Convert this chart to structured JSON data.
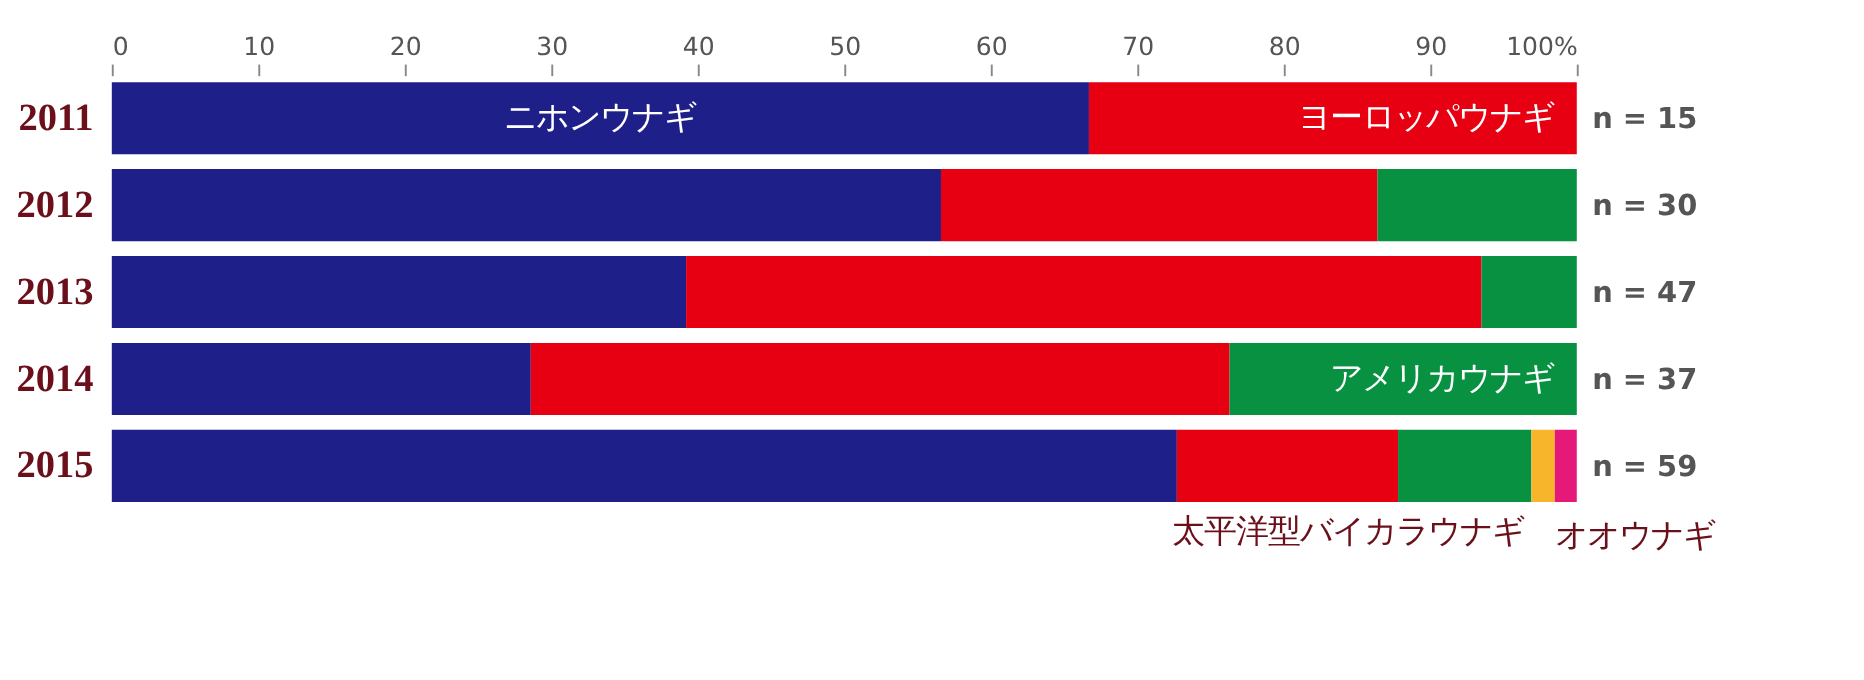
{
  "chart_data": {
    "type": "bar",
    "orientation": "horizontal",
    "stacked": true,
    "legend": false,
    "grid": false,
    "categories": [
      "2011",
      "2012",
      "2013",
      "2014",
      "2015"
    ],
    "xlim": [
      0,
      100
    ],
    "xticks": [
      0,
      10,
      20,
      30,
      40,
      50,
      60,
      70,
      80,
      90,
      {
        "value": 100,
        "label": "100%"
      }
    ],
    "series": [
      {
        "name": "ニホンウナギ",
        "color": "#1f1f8a",
        "values": [
          66.7,
          56.6,
          39.2,
          28.6,
          72.7
        ]
      },
      {
        "name": "ヨーロッパウナギ",
        "color": "#e60012",
        "values": [
          33.3,
          29.8,
          54.3,
          47.7,
          15.1
        ]
      },
      {
        "name": "アメリカウナギ",
        "color": "#079140",
        "values": [
          0,
          13.6,
          6.5,
          23.7,
          9.1
        ]
      },
      {
        "name": "太平洋型バイカラウナギ",
        "color": "#f7b52c",
        "values": [
          0,
          0,
          0,
          0,
          1.6
        ]
      },
      {
        "name": "オオウナギ",
        "color": "#e4197a",
        "values": [
          0,
          0,
          0,
          0,
          1.5
        ]
      }
    ],
    "annotations": [
      "n = 15",
      "n = 30",
      "n = 47",
      "n = 37",
      "n = 59"
    ]
  }
}
